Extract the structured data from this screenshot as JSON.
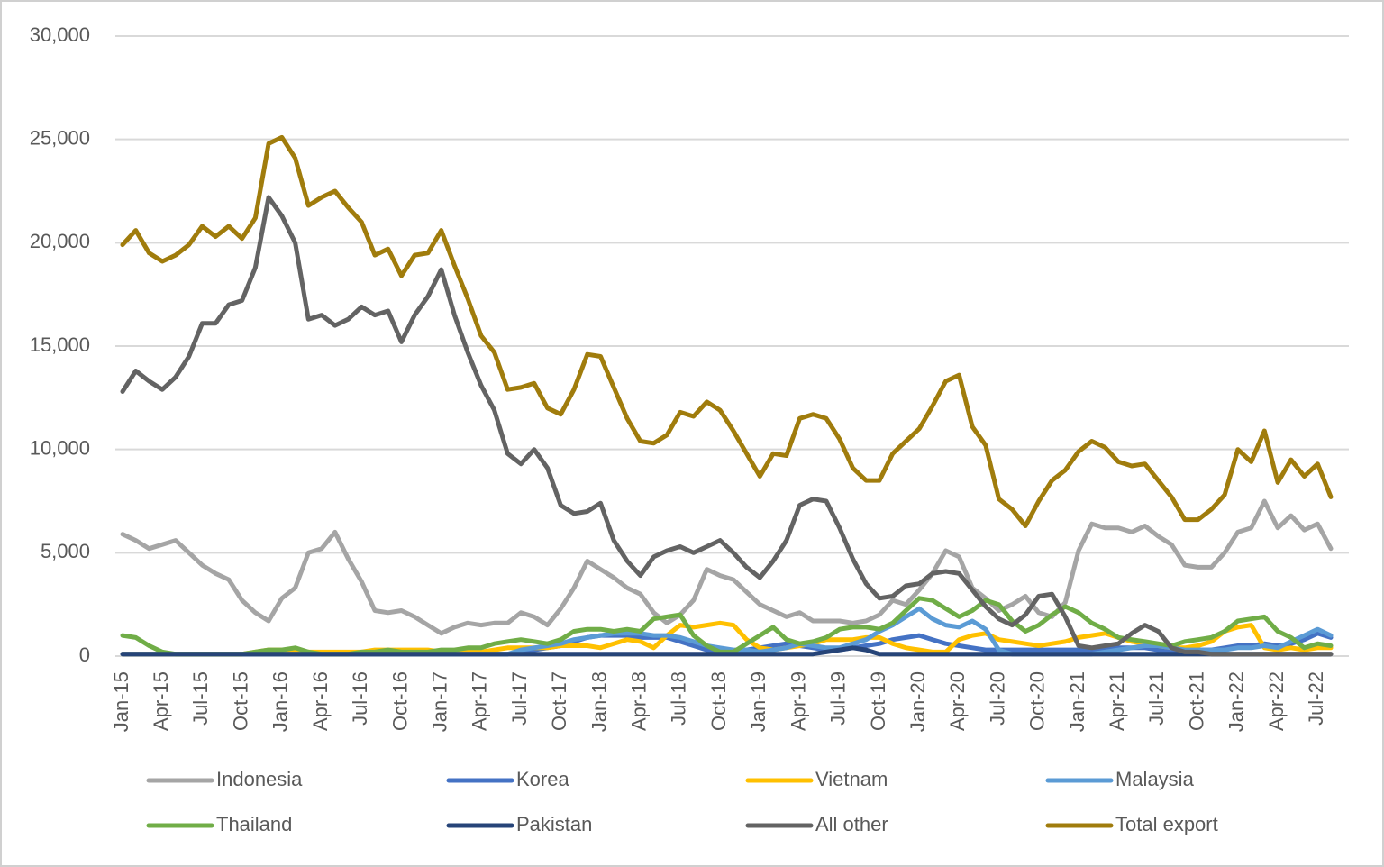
{
  "chart_data": {
    "type": "line",
    "categories": [
      "Jan-15",
      null,
      null,
      "Apr-15",
      null,
      null,
      "Jul-15",
      null,
      null,
      "Oct-15",
      null,
      null,
      "Jan-16",
      null,
      null,
      "Apr-16",
      null,
      null,
      "Jul-16",
      null,
      null,
      "Oct-16",
      null,
      null,
      "Jan-17",
      null,
      null,
      "Apr-17",
      null,
      null,
      "Jul-17",
      null,
      null,
      "Oct-17",
      null,
      null,
      "Jan-18",
      null,
      null,
      "Apr-18",
      null,
      null,
      "Jul-18",
      null,
      null,
      "Oct-18",
      null,
      null,
      "Jan-19",
      null,
      null,
      "Apr-19",
      null,
      null,
      "Jul-19",
      null,
      null,
      "Oct-19",
      null,
      null,
      "Jan-20",
      null,
      null,
      "Apr-20",
      null,
      null,
      "Jul-20",
      null,
      null,
      "Oct-20",
      null,
      null,
      "Jan-21",
      null,
      null,
      "Apr-21",
      null,
      null,
      "Jul-21",
      null,
      null,
      "Oct-21",
      null,
      null,
      "Jan-22",
      null,
      null,
      "Apr-22",
      null,
      null,
      "Jul-22",
      null
    ],
    "ylim": [
      0,
      30000
    ],
    "yticks": [
      0,
      {
        "value": 5000,
        "label": "5,000"
      },
      {
        "value": 10000,
        "label": "10,000"
      },
      {
        "value": 15000,
        "label": "15,000"
      },
      {
        "value": 20000,
        "label": "20,000"
      },
      {
        "value": 25000,
        "label": "25,000"
      },
      {
        "value": 30000,
        "label": "30,000"
      }
    ],
    "grid": true,
    "legend": "bottom",
    "series": [
      {
        "name": "Indonesia",
        "color": "#a5a5a5",
        "values": [
          5900,
          5600,
          5200,
          5400,
          5600,
          5000,
          4400,
          4000,
          3700,
          2700,
          2100,
          1700,
          2800,
          3300,
          5000,
          5200,
          6000,
          4700,
          3600,
          2200,
          2100,
          2200,
          1900,
          1500,
          1100,
          1400,
          1600,
          1500,
          1600,
          1600,
          2100,
          1900,
          1500,
          2300,
          3300,
          4600,
          4200,
          3800,
          3300,
          3000,
          2100,
          1600,
          2000,
          2700,
          4200,
          3900,
          3700,
          3100,
          2500,
          2200,
          1900,
          2100,
          1700,
          1700,
          1700,
          1600,
          1700,
          2000,
          2700,
          2500,
          3200,
          4000,
          5100,
          4800,
          3300,
          2800,
          2200,
          2500,
          2900,
          2100,
          1900,
          2600,
          5100,
          6400,
          6200,
          6200,
          6000,
          6300,
          5800,
          5400,
          4400,
          4300,
          4300,
          5000,
          6000,
          6200,
          7500,
          6200,
          6800,
          6100,
          6400,
          5200
        ]
      },
      {
        "name": "Korea",
        "color": "#4472c4",
        "values": [
          100,
          100,
          100,
          100,
          100,
          100,
          100,
          100,
          100,
          100,
          100,
          100,
          100,
          100,
          100,
          100,
          100,
          100,
          100,
          100,
          100,
          100,
          100,
          100,
          100,
          100,
          100,
          100,
          100,
          100,
          200,
          300,
          400,
          500,
          700,
          900,
          1000,
          1000,
          1000,
          900,
          900,
          900,
          700,
          500,
          300,
          200,
          200,
          300,
          400,
          500,
          600,
          500,
          400,
          300,
          300,
          400,
          500,
          600,
          800,
          900,
          1000,
          800,
          600,
          500,
          400,
          300,
          300,
          300,
          300,
          300,
          300,
          300,
          300,
          300,
          400,
          400,
          400,
          400,
          300,
          300,
          300,
          300,
          300,
          400,
          500,
          500,
          600,
          500,
          600,
          800,
          1100,
          900
        ]
      },
      {
        "name": "Vietnam",
        "color": "#ffc000",
        "values": [
          100,
          100,
          100,
          100,
          100,
          100,
          100,
          100,
          100,
          100,
          200,
          300,
          300,
          300,
          200,
          200,
          200,
          200,
          200,
          300,
          300,
          300,
          300,
          300,
          200,
          200,
          200,
          200,
          300,
          400,
          400,
          400,
          400,
          500,
          500,
          500,
          400,
          600,
          800,
          700,
          400,
          1000,
          1500,
          1400,
          1500,
          1600,
          1500,
          800,
          400,
          300,
          400,
          500,
          600,
          800,
          800,
          800,
          900,
          900,
          600,
          400,
          300,
          200,
          200,
          800,
          1000,
          1100,
          800,
          700,
          600,
          500,
          600,
          700,
          900,
          1000,
          1100,
          900,
          700,
          600,
          500,
          400,
          400,
          500,
          700,
          1200,
          1400,
          1500,
          400,
          300,
          400,
          300,
          400,
          400
        ]
      },
      {
        "name": "Malaysia",
        "color": "#5b9bd5",
        "values": [
          100,
          100,
          100,
          100,
          100,
          100,
          100,
          100,
          100,
          100,
          100,
          100,
          100,
          100,
          100,
          100,
          100,
          100,
          100,
          100,
          100,
          100,
          100,
          100,
          100,
          100,
          100,
          100,
          100,
          100,
          300,
          400,
          500,
          600,
          800,
          900,
          1000,
          1100,
          1100,
          1100,
          1000,
          1000,
          900,
          700,
          500,
          400,
          300,
          300,
          200,
          300,
          400,
          600,
          500,
          400,
          400,
          600,
          800,
          1200,
          1500,
          1900,
          2300,
          1800,
          1500,
          1400,
          1700,
          1300,
          300,
          100,
          100,
          100,
          100,
          100,
          100,
          100,
          200,
          300,
          400,
          500,
          500,
          400,
          300,
          300,
          300,
          300,
          400,
          400,
          500,
          400,
          700,
          1000,
          1300,
          1000
        ]
      },
      {
        "name": "Thailand",
        "color": "#70ad47",
        "values": [
          1000,
          900,
          500,
          200,
          100,
          100,
          100,
          100,
          100,
          100,
          200,
          300,
          300,
          400,
          200,
          100,
          100,
          100,
          200,
          200,
          300,
          200,
          200,
          200,
          300,
          300,
          400,
          400,
          600,
          700,
          800,
          700,
          600,
          800,
          1200,
          1300,
          1300,
          1200,
          1300,
          1200,
          1800,
          1900,
          2000,
          1000,
          500,
          200,
          200,
          600,
          1000,
          1400,
          800,
          600,
          700,
          900,
          1300,
          1400,
          1400,
          1300,
          1600,
          2200,
          2800,
          2700,
          2300,
          1900,
          2200,
          2700,
          2500,
          1700,
          1200,
          1500,
          2000,
          2400,
          2100,
          1600,
          1300,
          900,
          800,
          700,
          600,
          500,
          700,
          800,
          900,
          1200,
          1700,
          1800,
          1900,
          1200,
          900,
          400,
          600,
          500
        ]
      },
      {
        "name": "Pakistan",
        "color": "#264478",
        "values": [
          100,
          100,
          100,
          100,
          100,
          100,
          100,
          100,
          100,
          100,
          100,
          100,
          100,
          100,
          100,
          100,
          100,
          100,
          100,
          100,
          100,
          100,
          100,
          100,
          100,
          100,
          100,
          100,
          100,
          100,
          100,
          100,
          100,
          100,
          100,
          100,
          100,
          100,
          100,
          100,
          100,
          100,
          100,
          100,
          100,
          100,
          100,
          100,
          100,
          100,
          100,
          100,
          100,
          200,
          300,
          400,
          300,
          100,
          100,
          100,
          100,
          100,
          100,
          100,
          100,
          100,
          100,
          100,
          100,
          100,
          100,
          100,
          100,
          100,
          100,
          100,
          100,
          100,
          100,
          100,
          100,
          100,
          100,
          100,
          100,
          100,
          100,
          100,
          100,
          100,
          100,
          100
        ]
      },
      {
        "name": "All other",
        "color": "#636363",
        "values": [
          12800,
          13800,
          13300,
          12900,
          13500,
          14500,
          16100,
          16100,
          17000,
          17200,
          18800,
          22200,
          21300,
          20000,
          16300,
          16500,
          16000,
          16300,
          16900,
          16500,
          16700,
          15200,
          16500,
          17400,
          18700,
          16500,
          14700,
          13100,
          11900,
          9800,
          9300,
          10000,
          9100,
          7300,
          6900,
          7000,
          7400,
          5600,
          4600,
          3900,
          4800,
          5100,
          5300,
          5000,
          5300,
          5600,
          5000,
          4300,
          3800,
          4600,
          5600,
          7300,
          7600,
          7500,
          6200,
          4700,
          3500,
          2800,
          2900,
          3400,
          3500,
          4000,
          4100,
          4000,
          3200,
          2400,
          1800,
          1500,
          2000,
          2900,
          3000,
          1900,
          500,
          400,
          500,
          600,
          1100,
          1500,
          1200,
          400,
          200,
          200,
          100,
          100,
          100,
          100,
          100,
          100,
          100,
          100,
          100,
          100
        ]
      },
      {
        "name": "Total export",
        "color": "#a07c0c",
        "values": [
          19900,
          20600,
          19500,
          19100,
          19400,
          19900,
          20800,
          20300,
          20800,
          20200,
          21200,
          24800,
          25100,
          24100,
          21800,
          22200,
          22500,
          21700,
          21000,
          19400,
          19700,
          18400,
          19400,
          19500,
          20600,
          18900,
          17300,
          15500,
          14700,
          12900,
          13000,
          13200,
          12000,
          11700,
          12900,
          14600,
          14500,
          13000,
          11500,
          10400,
          10300,
          10700,
          11800,
          11600,
          12300,
          11900,
          10900,
          9800,
          8700,
          9800,
          9700,
          11500,
          11700,
          11500,
          10500,
          9100,
          8500,
          8500,
          9800,
          10400,
          11000,
          12100,
          13300,
          13600,
          11100,
          10200,
          7600,
          7100,
          6300,
          7500,
          8500,
          9000,
          9900,
          10400,
          10100,
          9400,
          9200,
          9300,
          8500,
          7700,
          6600,
          6600,
          7100,
          7800,
          10000,
          9400,
          10900,
          8400,
          9500,
          8700,
          9300,
          7700
        ]
      }
    ]
  }
}
